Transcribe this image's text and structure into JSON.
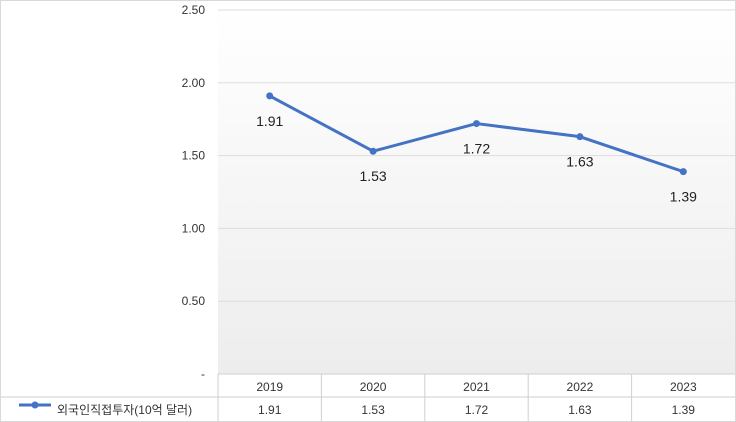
{
  "chart_data": {
    "type": "line",
    "categories": [
      "2019",
      "2020",
      "2021",
      "2022",
      "2023"
    ],
    "series": [
      {
        "name": "외국인직접투자(10억 달러)",
        "values": [
          1.91,
          1.53,
          1.72,
          1.63,
          1.39
        ],
        "color": "#4472c4"
      }
    ],
    "y_ticks": [
      "-",
      "0.50",
      "1.00",
      "1.50",
      "2.00",
      "2.50"
    ],
    "ylim": [
      0,
      2.5
    ],
    "grid": true,
    "data_labels": [
      "1.91",
      "1.53",
      "1.72",
      "1.63",
      "1.39"
    ],
    "data_table": {
      "row_label": "외국인직접투자(10억 달러)",
      "values": [
        "1.91",
        "1.53",
        "1.72",
        "1.63",
        "1.39"
      ]
    }
  }
}
